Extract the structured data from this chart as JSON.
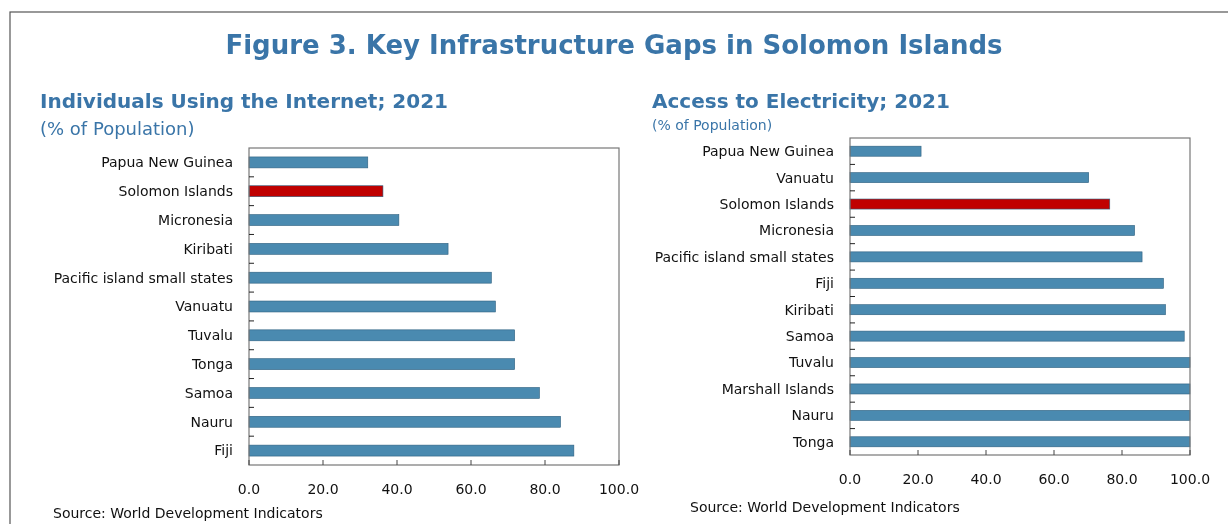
{
  "chart_data": [
    {
      "type": "bar",
      "orientation": "horizontal",
      "title": "Individuals Using the Internet; 2021",
      "subtitle": "(% of Population)",
      "annotations": [
        "Figure 3. Key Infrastructure Gaps in Solomon Islands",
        "Source: World Development Indicators"
      ],
      "categories": [
        "Papua New Guinea",
        "Solomon Islands",
        "Micronesia",
        "Kiribati",
        "Pacific island small states",
        "Vanuatu",
        "Tuvalu",
        "Tonga",
        "Samoa",
        "Nauru",
        "Fiji"
      ],
      "values": [
        32.1,
        36.2,
        40.5,
        53.8,
        65.5,
        66.6,
        71.8,
        71.8,
        78.5,
        84.2,
        87.8
      ],
      "colors": [
        "#4a8ab0",
        "#c00000",
        "#4a8ab0",
        "#4a8ab0",
        "#4a8ab0",
        "#4a8ab0",
        "#4a8ab0",
        "#4a8ab0",
        "#4a8ab0",
        "#4a8ab0",
        "#4a8ab0"
      ],
      "xlim": [
        0,
        100
      ],
      "xticks": [
        {
          "value": 0,
          "label": "0.0"
        },
        {
          "value": 20,
          "label": "20.0"
        },
        {
          "value": 40,
          "label": "40.0"
        },
        {
          "value": 60,
          "label": "60.0"
        },
        {
          "value": 80,
          "label": "80.0"
        },
        {
          "value": 100,
          "label": "100.0"
        }
      ]
    },
    {
      "type": "bar",
      "orientation": "horizontal",
      "title": "Access to Electricity; 2021",
      "subtitle": "(% of Population)",
      "annotations": [
        "Source: World Development Indicators"
      ],
      "categories": [
        "Papua New Guinea",
        "Vanuatu",
        "Solomon Islands",
        "Micronesia",
        "Pacific island small states",
        "Fiji",
        "Kiribati",
        "Samoa",
        "Tuvalu",
        "Marshall Islands",
        "Nauru",
        "Tonga"
      ],
      "values": [
        20.9,
        70.2,
        76.4,
        83.7,
        85.9,
        92.2,
        92.8,
        98.3,
        100,
        100,
        100,
        100
      ],
      "colors": [
        "#4a8ab0",
        "#4a8ab0",
        "#c00000",
        "#4a8ab0",
        "#4a8ab0",
        "#4a8ab0",
        "#4a8ab0",
        "#4a8ab0",
        "#4a8ab0",
        "#4a8ab0",
        "#4a8ab0",
        "#4a8ab0"
      ],
      "xlim": [
        0,
        100
      ],
      "xticks": [
        {
          "value": 0,
          "label": "0.0"
        },
        {
          "value": 20,
          "label": "20.0"
        },
        {
          "value": 40,
          "label": "40.0"
        },
        {
          "value": 60,
          "label": "60.0"
        },
        {
          "value": 80,
          "label": "80.0"
        },
        {
          "value": 100,
          "label": "100.0"
        }
      ]
    }
  ]
}
